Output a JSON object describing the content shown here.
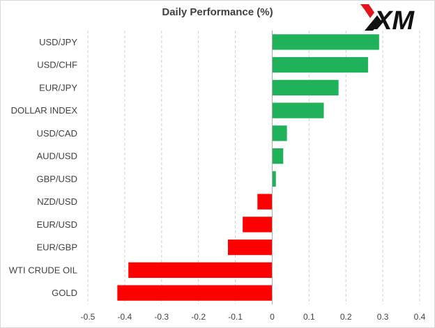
{
  "brand": {
    "logo_text": "XM"
  },
  "chart_data": {
    "type": "bar",
    "orientation": "horizontal",
    "title": "Daily Performance (%)",
    "xlabel": "",
    "ylabel": "",
    "categories": [
      "USD/JPY",
      "USD/CHF",
      "EUR/JPY",
      "DOLLAR INDEX",
      "USD/CAD",
      "AUD/USD",
      "GBP/USD",
      "NZD/USD",
      "EUR/USD",
      "EUR/GBP",
      "WTI CRUDE OIL",
      "GOLD"
    ],
    "values": [
      0.29,
      0.26,
      0.18,
      0.14,
      0.04,
      0.03,
      0.01,
      -0.04,
      -0.08,
      -0.12,
      -0.39,
      -0.42
    ],
    "xlim": [
      -0.5,
      0.4
    ],
    "ticks": [
      -0.5,
      -0.4,
      -0.3,
      -0.2,
      -0.1,
      0,
      0.1,
      0.2,
      0.3,
      0.4
    ],
    "grid": "vertical-dashed",
    "legend": "none",
    "colors": {
      "positive": "#1FB25A",
      "negative": "#FF0000",
      "grid": "#d0d0d0",
      "axis": "#a6a6a6"
    }
  }
}
